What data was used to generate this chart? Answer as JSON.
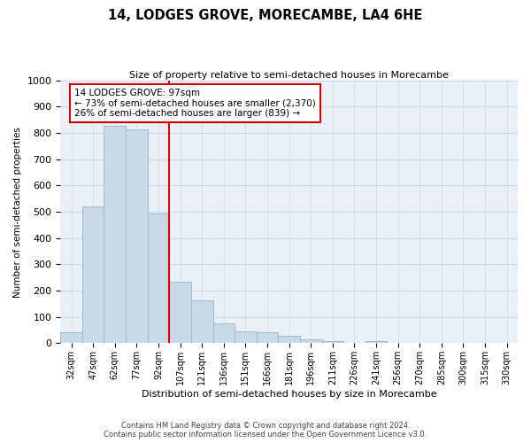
{
  "title": "14, LODGES GROVE, MORECAMBE, LA4 6HE",
  "subtitle": "Size of property relative to semi-detached houses in Morecambe",
  "xlabel": "Distribution of semi-detached houses by size in Morecambe",
  "ylabel": "Number of semi-detached properties",
  "bar_labels": [
    "32sqm",
    "47sqm",
    "62sqm",
    "77sqm",
    "92sqm",
    "107sqm",
    "121sqm",
    "136sqm",
    "151sqm",
    "166sqm",
    "181sqm",
    "196sqm",
    "211sqm",
    "226sqm",
    "241sqm",
    "256sqm",
    "270sqm",
    "285sqm",
    "300sqm",
    "315sqm",
    "330sqm"
  ],
  "bar_values": [
    42,
    522,
    829,
    813,
    495,
    234,
    163,
    74,
    46,
    43,
    29,
    14,
    7,
    0,
    8,
    0,
    0,
    0,
    0,
    0,
    0
  ],
  "bar_color": "#c9d9e8",
  "bar_edgecolor": "#a0b8d0",
  "vline_x": 4.5,
  "vline_color": "#cc0000",
  "annotation_title": "14 LODGES GROVE: 97sqm",
  "annotation_line1": "← 73% of semi-detached houses are smaller (2,370)",
  "annotation_line2": "26% of semi-detached houses are larger (839) →",
  "annotation_box_facecolor": "#ffffff",
  "annotation_box_edgecolor": "#cc0000",
  "ylim": [
    0,
    1000
  ],
  "yticks": [
    0,
    100,
    200,
    300,
    400,
    500,
    600,
    700,
    800,
    900,
    1000
  ],
  "footer_line1": "Contains HM Land Registry data © Crown copyright and database right 2024.",
  "footer_line2": "Contains public sector information licensed under the Open Government Licence v3.0.",
  "background_color": "#ffffff",
  "axes_facecolor": "#eaf0f6",
  "grid_color": "#c8d8e8"
}
